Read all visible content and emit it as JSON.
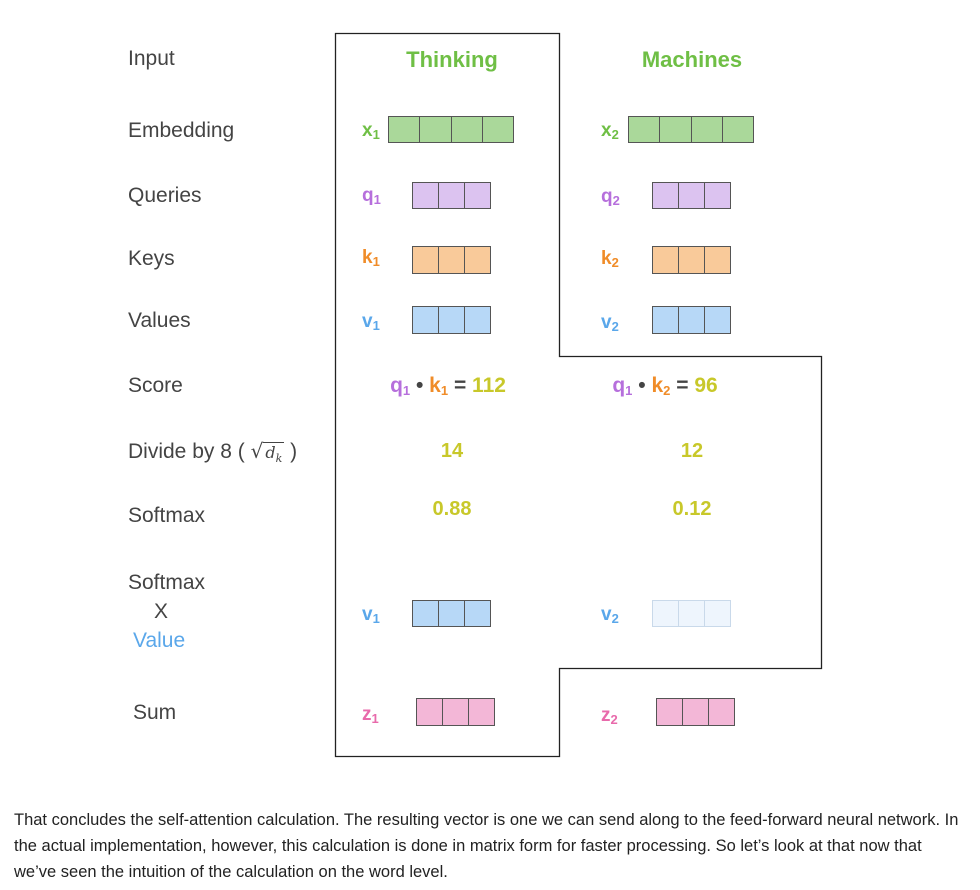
{
  "colors": {
    "input": "#6fbf45",
    "embedding_fill": "#aad89a",
    "query": "#b66fdc",
    "query_fill": "#dcc3f0",
    "key": "#f08c28",
    "key_fill": "#f9ca9a",
    "value": "#5aa7ea",
    "value_fill": "#b7d8f7",
    "value_faint_fill": "#eef5fd",
    "number": "#c8c82a",
    "sum": "#e86aab",
    "sum_fill": "#f3b7d7"
  },
  "row_labels": {
    "input": "Input",
    "embedding": "Embedding",
    "queries": "Queries",
    "keys": "Keys",
    "values": "Values",
    "score": "Score",
    "divide": "Divide by 8 (",
    "divide_close": ")",
    "sqrt_d": "d",
    "sqrt_k": "k",
    "softmax": "Softmax",
    "softmax_x_1": "Softmax",
    "softmax_x_2": "X",
    "softmax_x_3": "Value",
    "sum": "Sum"
  },
  "words": [
    {
      "word": "Thinking",
      "x": "x",
      "x_sub": "1",
      "q": "q",
      "q_sub": "1",
      "k": "k",
      "k_sub": "1",
      "v": "v",
      "v_sub": "1",
      "score": {
        "q": "q",
        "q_sub": "1",
        "dot": "•",
        "k": "k",
        "k_sub": "1",
        "eq": "=",
        "value": "112"
      },
      "divided": "14",
      "softmax": "0.88",
      "weighted_v": "v",
      "weighted_v_sub": "1",
      "z": "z",
      "z_sub": "1"
    },
    {
      "word": "Machines",
      "x": "x",
      "x_sub": "2",
      "q": "q",
      "q_sub": "2",
      "k": "k",
      "k_sub": "2",
      "v": "v",
      "v_sub": "2",
      "score": {
        "q": "q",
        "q_sub": "1",
        "dot": "•",
        "k": "k",
        "k_sub": "2",
        "eq": "=",
        "value": "96"
      },
      "divided": "12",
      "softmax": "0.12",
      "weighted_v": "v",
      "weighted_v_sub": "2",
      "z": "z",
      "z_sub": "2"
    }
  ],
  "caption": "That concludes the self-attention calculation. The resulting vector is one we can send along to the feed-forward neural network. In the actual implementation, however, this calculation is done in matrix form for faster processing. So let’s look at that now that we’ve seen the intuition of the calculation on the word level."
}
